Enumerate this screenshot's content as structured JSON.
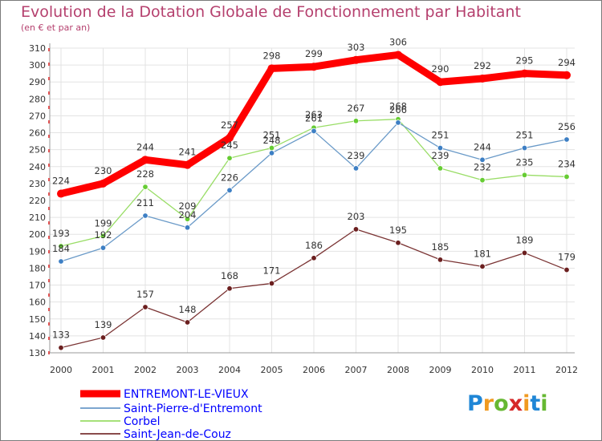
{
  "chart_data": {
    "type": "line",
    "title": "Evolution de la Dotation Globale de Fonctionnement par Habitant",
    "subtitle": "(en € et par an)",
    "xlabel": "",
    "ylabel": "",
    "x": [
      "2000",
      "2001",
      "2002",
      "2003",
      "2004",
      "2005",
      "2006",
      "2007",
      "2008",
      "2009",
      "2010",
      "2011",
      "2012"
    ],
    "ylim": [
      130,
      310
    ],
    "yticks": [
      130,
      140,
      150,
      160,
      170,
      180,
      190,
      200,
      210,
      220,
      230,
      240,
      250,
      260,
      270,
      280,
      290,
      300,
      310
    ],
    "grid": true,
    "legend_position": "bottom-left",
    "series": [
      {
        "name": "ENTREMONT-LE-VIEUX",
        "color": "#ff0000",
        "label_color": "#0000ff",
        "values": [
          224,
          230,
          244,
          241,
          257,
          298,
          299,
          303,
          306,
          290,
          292,
          295,
          294
        ]
      },
      {
        "name": "Saint-Pierre-d'Entremont",
        "color": "#6a9ac8",
        "label_color": "#0000ff",
        "values": [
          184,
          192,
          211,
          204,
          226,
          248,
          261,
          239,
          266,
          251,
          244,
          251,
          256
        ]
      },
      {
        "name": "Corbel",
        "color": "#99dd66",
        "label_color": "#0000ff",
        "values": [
          193,
          199,
          228,
          209,
          245,
          251,
          263,
          267,
          268,
          239,
          232,
          235,
          234
        ]
      },
      {
        "name": "Saint-Jean-de-Couz",
        "color": "#7a3333",
        "label_color": "#0000ff",
        "values": [
          133,
          139,
          157,
          148,
          168,
          171,
          186,
          203,
          195,
          185,
          181,
          189,
          179
        ]
      }
    ]
  },
  "logo": {
    "letters": [
      "P",
      "r",
      "o",
      "x",
      "i",
      "t",
      "i"
    ],
    "colors": [
      "#1f86d6",
      "#f09a20",
      "#66b832",
      "#d62828",
      "#f09a20",
      "#1f86d6",
      "#66b832"
    ]
  }
}
